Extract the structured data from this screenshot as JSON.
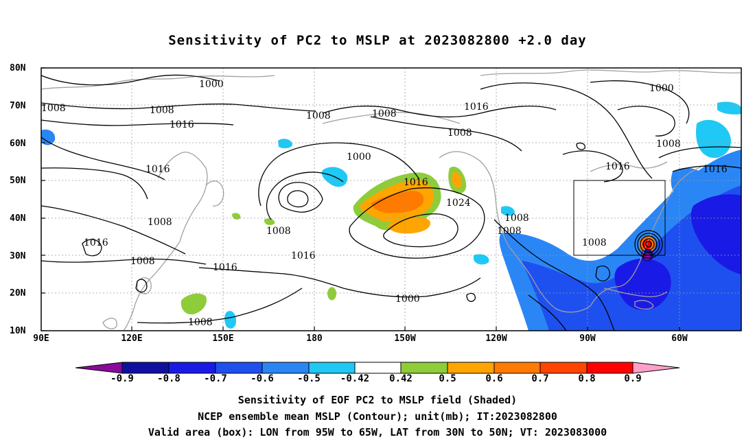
{
  "title": "Sensitivity of PC2 to MSLP at 2023082800 +2.0 day",
  "map": {
    "lat_labels": [
      "80N",
      "70N",
      "60N",
      "50N",
      "40N",
      "30N",
      "20N",
      "10N"
    ],
    "lon_labels": [
      "90E",
      "120E",
      "150E",
      "180",
      "150W",
      "120W",
      "90W",
      "60W"
    ],
    "contour_labels": [
      "1000",
      "1008",
      "1016",
      "1008",
      "1016",
      "1008",
      "1016",
      "1008",
      "1000",
      "1016",
      "1024",
      "1008",
      "1008",
      "1016",
      "1016",
      "1008",
      "1008",
      "1008",
      "1016",
      "1000",
      "1008",
      "1016",
      "1008",
      "1000",
      "1008",
      "1008",
      "1016"
    ],
    "valid_box": {
      "lon_from": "95W",
      "lon_to": "65W",
      "lat_from": "30N",
      "lat_to": "50N"
    }
  },
  "colorbar": {
    "labels": [
      "-0.9",
      "-0.8",
      "-0.7",
      "-0.6",
      "-0.5",
      "-0.42",
      "0.42",
      "0.5",
      "0.6",
      "0.7",
      "0.8",
      "0.9"
    ],
    "colors": [
      "#8a0a9c",
      "#1010a0",
      "#1a1ae6",
      "#1e50f0",
      "#2a86f5",
      "#1fc8f5",
      "#ffffff",
      "#8fcc3a",
      "#ffa500",
      "#ff7a00",
      "#ff4500",
      "#ff0000",
      "#ffa0c8"
    ]
  },
  "footer": {
    "line1": "Sensitivity of EOF PC2 to MSLP field (Shaded)",
    "line2": "NCEP ensemble mean MSLP (Contour); unit(mb); IT:2023082800",
    "line3": "Valid area (box): LON from 95W to 65W, LAT from 30N to 50N; VT: 2023083000"
  }
}
